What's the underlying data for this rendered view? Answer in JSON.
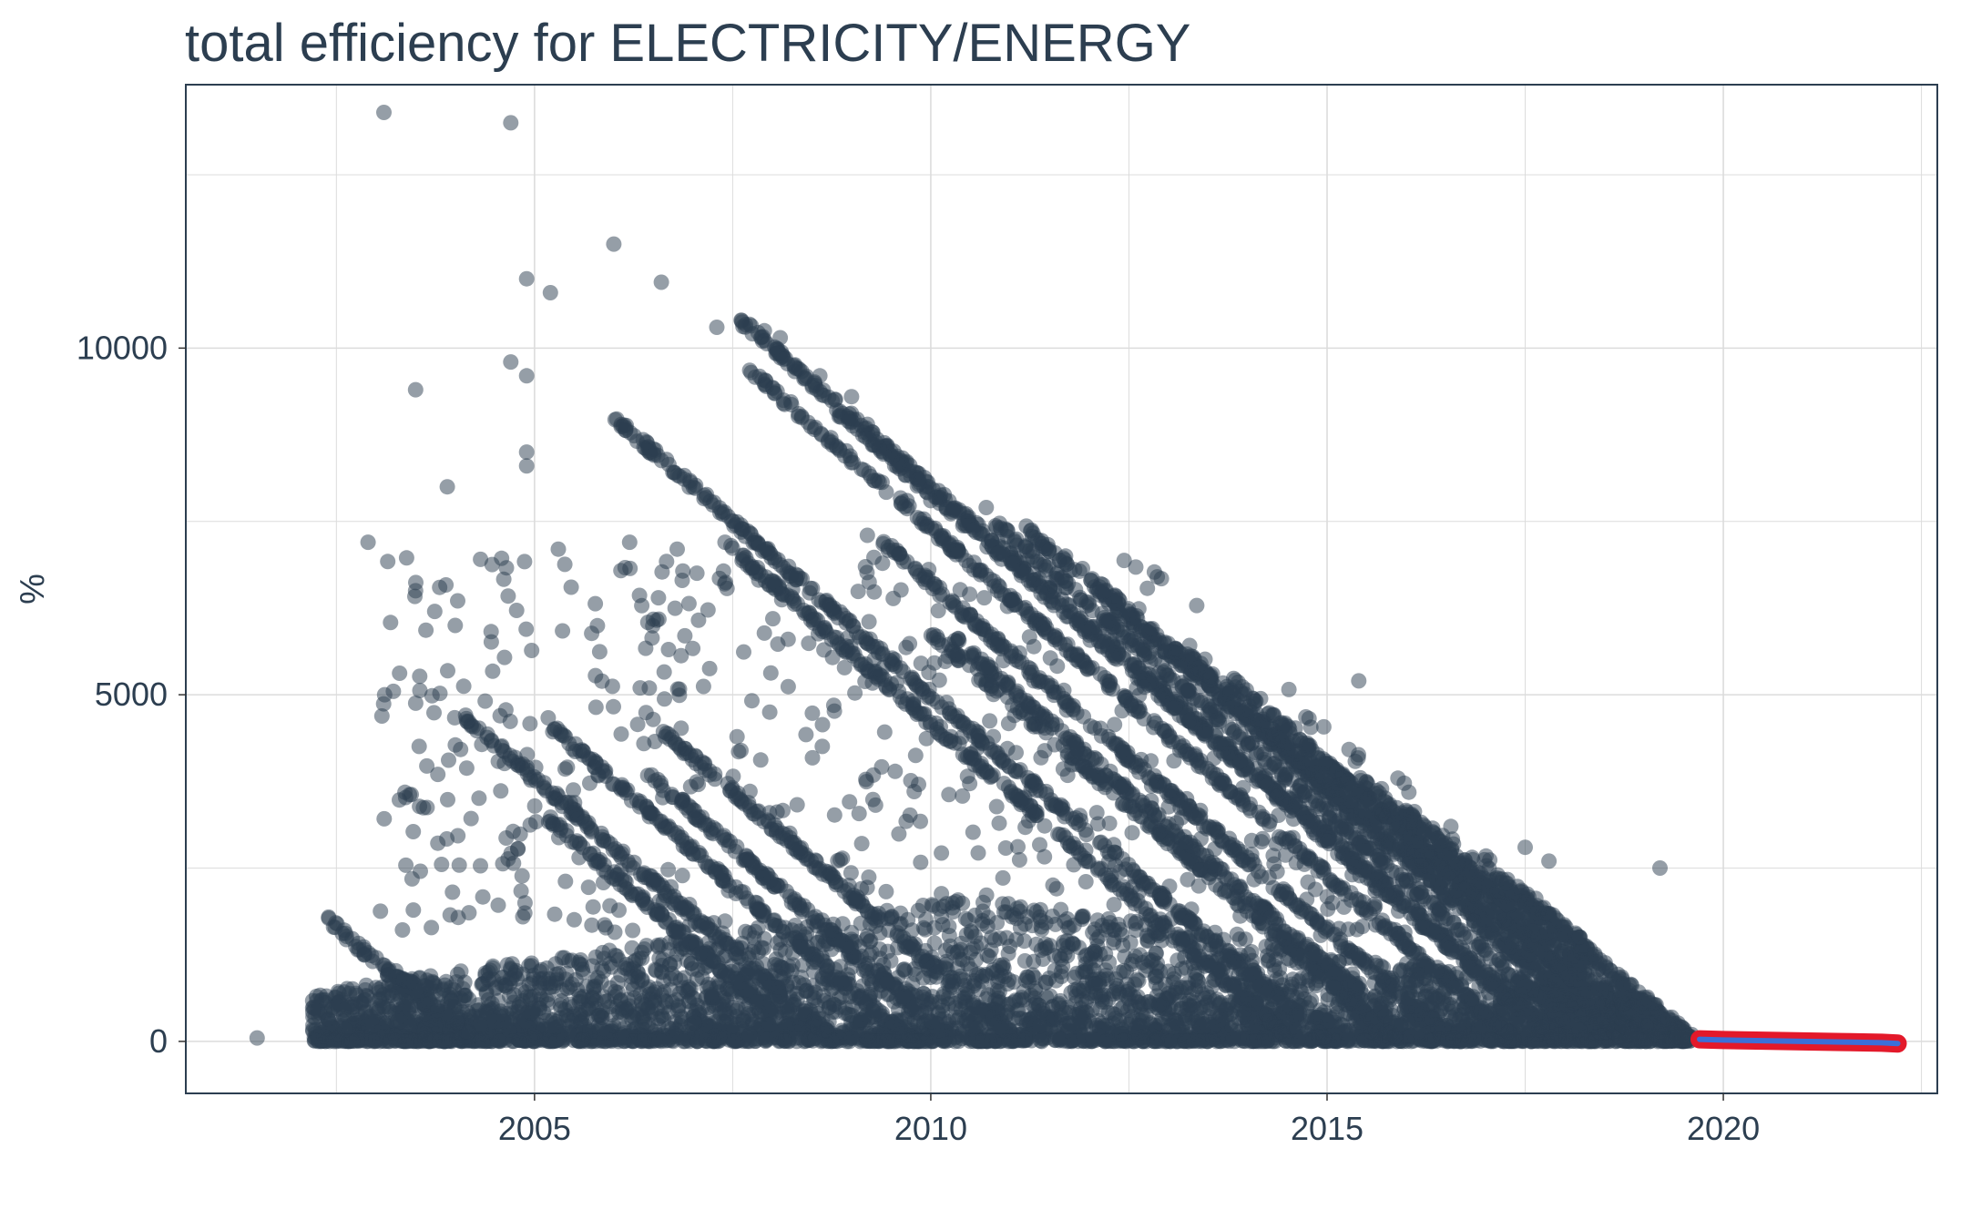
{
  "chart_data": {
    "type": "scatter",
    "title": "total efficiency for ELECTRICITY/ENERGY",
    "xlabel": "",
    "ylabel": "%",
    "xlim": [
      2000.6,
      2022.7
    ],
    "ylim": [
      -750,
      13800
    ],
    "x_ticks": [
      2005,
      2010,
      2015,
      2020
    ],
    "x_tick_labels": [
      "2005",
      "2010",
      "2015",
      "2020"
    ],
    "y_ticks": [
      0,
      5000,
      10000
    ],
    "y_tick_labels": [
      "0",
      "5000",
      "10000"
    ],
    "grid": true,
    "legend": "none",
    "colors": {
      "points": "#2c3e50",
      "forecast_band": "#e3192a",
      "forecast_line": "#3b6fd8",
      "grid": "#dcdcdc",
      "panel_border": "#2c3e50"
    },
    "series": [
      {
        "role": "observed",
        "diagonal_bands_start_value": [
          [
            2002.4,
            1750
          ],
          [
            2003.2,
            1050
          ],
          [
            2004.1,
            4700
          ],
          [
            2005.2,
            4550
          ],
          [
            2005.1,
            3300
          ],
          [
            2006.4,
            3900
          ],
          [
            2006.6,
            4500
          ],
          [
            2006.0,
            9000
          ],
          [
            2007.6,
            10400
          ],
          [
            2007.7,
            9700
          ],
          [
            2007.4,
            7200
          ],
          [
            2008.8,
            9100
          ],
          [
            2009.4,
            7200
          ],
          [
            2010.0,
            5900
          ],
          [
            2010.3,
            5800
          ],
          [
            2010.8,
            7500
          ],
          [
            2011.2,
            7400
          ],
          [
            2011.9,
            6800
          ],
          [
            2013.2,
            5600
          ],
          [
            2013.8,
            5200
          ],
          [
            2014.8,
            4200
          ],
          [
            2015.4,
            3800
          ],
          [
            2016.0,
            3300
          ],
          [
            2017.0,
            2500
          ],
          [
            2017.4,
            2200
          ]
        ],
        "outliers": [
          [
            2001.5,
            50
          ],
          [
            2003.1,
            13400
          ],
          [
            2004.7,
            13250
          ],
          [
            2006.0,
            11500
          ],
          [
            2004.9,
            11000
          ],
          [
            2005.2,
            10800
          ],
          [
            2006.6,
            10950
          ],
          [
            2007.3,
            10300
          ],
          [
            2007.9,
            10250
          ],
          [
            2008.1,
            10150
          ],
          [
            2004.7,
            9800
          ],
          [
            2004.9,
            9600
          ],
          [
            2003.5,
            9400
          ],
          [
            2003.9,
            8000
          ],
          [
            2004.9,
            8300
          ],
          [
            2004.9,
            8500
          ],
          [
            2002.9,
            7200
          ],
          [
            2003.5,
            6500
          ],
          [
            2005.3,
            7100
          ],
          [
            2006.2,
            7200
          ],
          [
            2006.8,
            7100
          ],
          [
            2004.0,
            6000
          ],
          [
            2011.7,
            7000
          ],
          [
            2015.4,
            5200
          ],
          [
            2017.5,
            2800
          ],
          [
            2017.8,
            2600
          ],
          [
            2019.2,
            2500
          ],
          [
            2018.6,
            900
          ],
          [
            2008.6,
            9600
          ],
          [
            2009.0,
            9300
          ],
          [
            2009.2,
            8900
          ],
          [
            2009.4,
            8500
          ],
          [
            2009.7,
            7800
          ],
          [
            2010.0,
            7800
          ],
          [
            2009.2,
            7300
          ],
          [
            2010.7,
            7700
          ],
          [
            2007.4,
            6600
          ],
          [
            2008.2,
            5800
          ],
          [
            2011.3,
            5200
          ],
          [
            2012.6,
            5100
          ]
        ]
      },
      {
        "role": "forecast",
        "x": [
          2019.7,
          2020.0,
          2020.5,
          2021.0,
          2021.5,
          2022.0,
          2022.2
        ],
        "y": [
          30,
          20,
          10,
          0,
          -10,
          -20,
          -30
        ]
      }
    ]
  }
}
